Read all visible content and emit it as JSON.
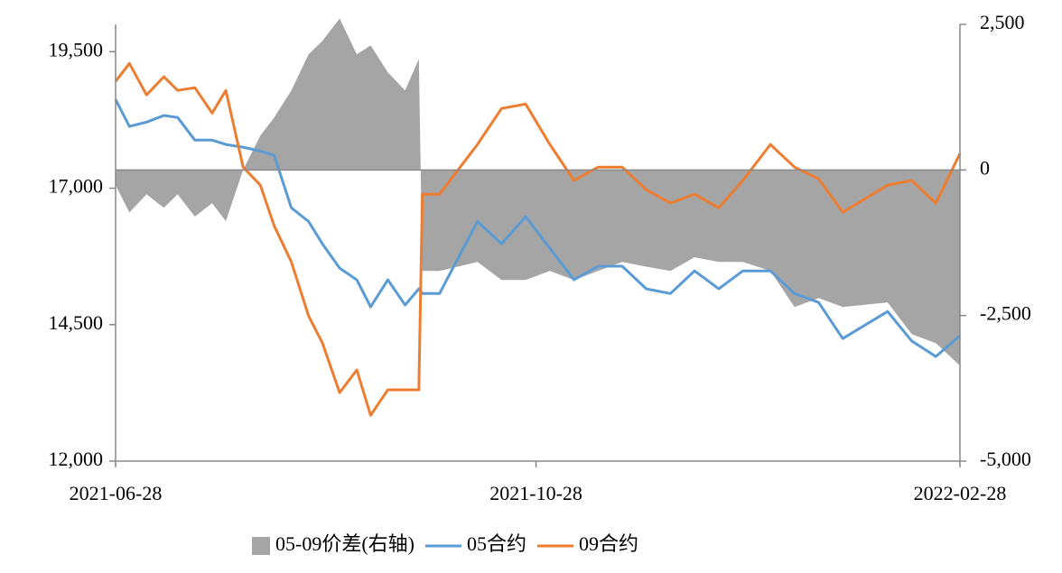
{
  "chart_data": {
    "type": "line",
    "x": [
      "2021-06-28",
      "2021-07-02",
      "2021-07-07",
      "2021-07-12",
      "2021-07-16",
      "2021-07-21",
      "2021-07-26",
      "2021-07-30",
      "2021-08-04",
      "2021-08-09",
      "2021-08-13",
      "2021-08-18",
      "2021-08-23",
      "2021-08-27",
      "2021-09-01",
      "2021-09-06",
      "2021-09-10",
      "2021-09-15",
      "2021-09-20",
      "2021-09-24",
      "2021-09-25",
      "2021-09-30",
      "2021-10-11",
      "2021-10-18",
      "2021-10-25",
      "2021-11-01",
      "2021-11-08",
      "2021-11-15",
      "2021-11-22",
      "2021-11-29",
      "2021-12-06",
      "2021-12-13",
      "2021-12-20",
      "2021-12-27",
      "2022-01-04",
      "2022-01-11",
      "2022-01-18",
      "2022-01-25",
      "2022-02-07",
      "2022-02-14",
      "2022-02-21",
      "2022-02-28"
    ],
    "series": [
      {
        "name": "05-09价差(右轴)",
        "type": "area",
        "axis": "y2",
        "color": "#a5a5a5",
        "values": [
          -260,
          -730,
          -420,
          -650,
          -420,
          -800,
          -570,
          -880,
          0,
          590,
          900,
          1365,
          1985,
          2215,
          2600,
          1985,
          2140,
          1675,
          1365,
          1905,
          -1735,
          -1735,
          -1580,
          -1890,
          -1890,
          -1735,
          -1890,
          -1735,
          -1580,
          -1660,
          -1735,
          -1500,
          -1580,
          -1580,
          -1735,
          -2355,
          -2200,
          -2355,
          -2275,
          -2820,
          -2975,
          -3360
        ]
      },
      {
        "name": "05合约",
        "type": "line",
        "color": "#5b9bd5",
        "values": [
          18625,
          18130,
          18210,
          18330,
          18295,
          17880,
          17880,
          17800,
          17750,
          17680,
          17600,
          16640,
          16390,
          15980,
          15535,
          15320,
          14825,
          15320,
          14860,
          15155,
          15070,
          15070,
          16390,
          15980,
          16480,
          15900,
          15320,
          15570,
          15570,
          15155,
          15070,
          15485,
          15155,
          15485,
          15485,
          15070,
          14905,
          14245,
          14740,
          14200,
          13915,
          14300
        ]
      },
      {
        "name": "09合约",
        "type": "line",
        "color": "#ed7d31",
        "values": [
          18955,
          19285,
          18707,
          19040,
          18790,
          18840,
          18376,
          18790,
          17385,
          17055,
          16310,
          15650,
          14660,
          14165,
          13255,
          13670,
          12840,
          13305,
          13305,
          13305,
          16890,
          16890,
          17800,
          18460,
          18540,
          17800,
          17140,
          17385,
          17385,
          16970,
          16725,
          16890,
          16640,
          17140,
          17800,
          17385,
          17170,
          16560,
          17055,
          17140,
          16725,
          17635
        ]
      }
    ],
    "xlim": [
      "2021-06-28",
      "2022-02-28"
    ],
    "xticks": [
      "2021-06-28",
      "2021-10-28",
      "2022-02-28"
    ],
    "ylim": [
      12000,
      20000
    ],
    "yticks": [
      {
        "value": 12000,
        "label": "12,000"
      },
      {
        "value": 14500,
        "label": "14,500"
      },
      {
        "value": 17000,
        "label": "17,000"
      },
      {
        "value": 19500,
        "label": "19,500"
      }
    ],
    "y2lim": [
      -5000,
      2500
    ],
    "y2ticks": [
      {
        "value": -5000,
        "label": "-5,000"
      },
      {
        "value": -2500,
        "label": "-2,500"
      },
      0,
      {
        "value": 2500,
        "label": "2,500"
      }
    ],
    "legend": "bottom"
  }
}
